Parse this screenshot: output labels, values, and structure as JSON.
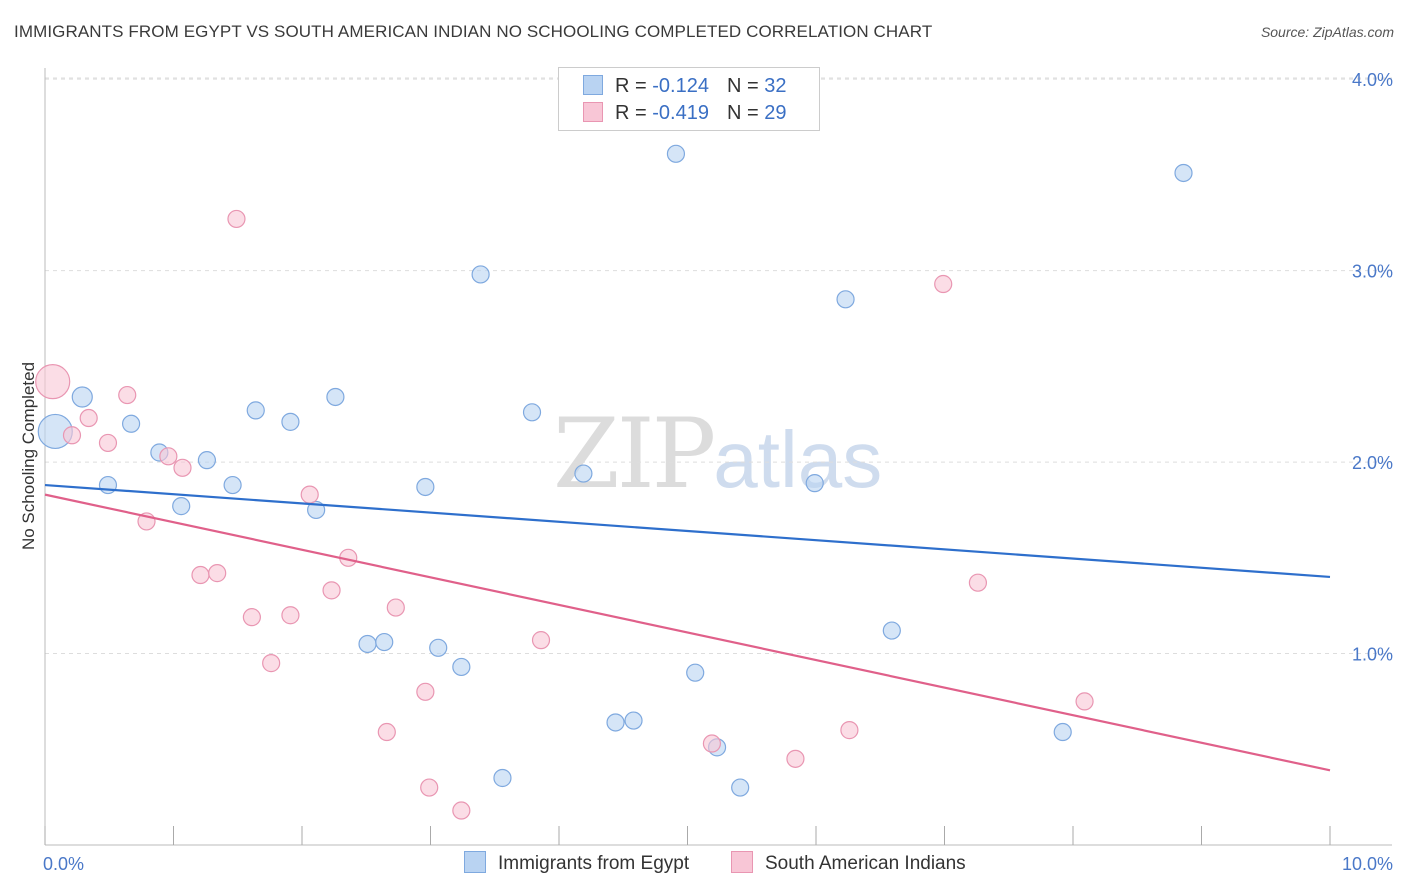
{
  "header": {
    "title": "IMMIGRANTS FROM EGYPT VS SOUTH AMERICAN INDIAN NO SCHOOLING COMPLETED CORRELATION CHART",
    "source": "Source: ZipAtlas.com"
  },
  "watermark": {
    "zip": "ZIP",
    "atlas": "atlas"
  },
  "legend": {
    "rows": [
      {
        "r_label": "R =",
        "r_value": "-0.124",
        "n_label": "N =",
        "n_value": "32"
      },
      {
        "r_label": "R =",
        "r_value": "-0.419",
        "n_label": "N =",
        "n_value": "29"
      }
    ]
  },
  "bottom_legend": {
    "egypt": "Immigrants from Egypt",
    "sai": "South American Indians"
  },
  "chart_data": {
    "type": "scatter",
    "title": "IMMIGRANTS FROM EGYPT VS SOUTH AMERICAN INDIAN NO SCHOOLING COMPLETED CORRELATION CHART",
    "xlabel": "",
    "ylabel": "No Schooling Completed",
    "xlim": [
      0,
      10
    ],
    "ylim": [
      0,
      4.1
    ],
    "x_tick_labels": [
      "0.0%",
      "10.0%"
    ],
    "y_ticks": [
      1,
      2,
      3,
      4
    ],
    "y_tick_labels": [
      "1.0%",
      "2.0%",
      "3.0%",
      "4.0%"
    ],
    "grid": true,
    "legend_position": "top-center",
    "colors": {
      "egypt_fill": "#b9d3f2",
      "egypt_stroke": "#7fa9df",
      "egypt_line": "#2e6fcc",
      "sai_fill": "#f8c6d6",
      "sai_stroke": "#e996b2",
      "sai_line": "#e0608a",
      "grid": "#dddddd",
      "tick_label": "#4a78c8"
    },
    "series": [
      {
        "name": "Immigrants from Egypt",
        "color": "#b9d3f2",
        "points": [
          {
            "x": 0.08,
            "y": 2.16,
            "size": 34
          },
          {
            "x": 0.29,
            "y": 2.34,
            "size": 20
          },
          {
            "x": 0.49,
            "y": 1.88,
            "size": 17
          },
          {
            "x": 0.67,
            "y": 2.2,
            "size": 17
          },
          {
            "x": 0.89,
            "y": 2.05,
            "size": 17
          },
          {
            "x": 1.06,
            "y": 1.77,
            "size": 17
          },
          {
            "x": 1.26,
            "y": 2.01,
            "size": 17
          },
          {
            "x": 1.46,
            "y": 1.88,
            "size": 17
          },
          {
            "x": 1.64,
            "y": 2.27,
            "size": 17
          },
          {
            "x": 1.91,
            "y": 2.21,
            "size": 17
          },
          {
            "x": 2.11,
            "y": 1.75,
            "size": 17
          },
          {
            "x": 2.26,
            "y": 2.34,
            "size": 17
          },
          {
            "x": 2.51,
            "y": 1.05,
            "size": 17
          },
          {
            "x": 2.64,
            "y": 1.06,
            "size": 17
          },
          {
            "x": 2.96,
            "y": 1.87,
            "size": 17
          },
          {
            "x": 3.06,
            "y": 1.03,
            "size": 17
          },
          {
            "x": 3.24,
            "y": 0.93,
            "size": 17
          },
          {
            "x": 3.39,
            "y": 2.98,
            "size": 17
          },
          {
            "x": 3.56,
            "y": 0.35,
            "size": 17
          },
          {
            "x": 3.79,
            "y": 2.26,
            "size": 17
          },
          {
            "x": 4.19,
            "y": 1.94,
            "size": 17
          },
          {
            "x": 4.44,
            "y": 0.64,
            "size": 17
          },
          {
            "x": 4.58,
            "y": 0.65,
            "size": 17
          },
          {
            "x": 4.91,
            "y": 3.61,
            "size": 17
          },
          {
            "x": 5.06,
            "y": 0.9,
            "size": 17
          },
          {
            "x": 5.23,
            "y": 0.51,
            "size": 17
          },
          {
            "x": 5.41,
            "y": 0.3,
            "size": 17
          },
          {
            "x": 5.99,
            "y": 1.89,
            "size": 17
          },
          {
            "x": 6.23,
            "y": 2.85,
            "size": 17
          },
          {
            "x": 6.59,
            "y": 1.12,
            "size": 17
          },
          {
            "x": 7.92,
            "y": 0.59,
            "size": 17
          },
          {
            "x": 8.86,
            "y": 3.51,
            "size": 17
          }
        ],
        "trend": {
          "x": [
            0,
            10
          ],
          "y": [
            1.88,
            1.4
          ]
        }
      },
      {
        "name": "South American Indians",
        "color": "#f8c6d6",
        "points": [
          {
            "x": 0.06,
            "y": 2.42,
            "size": 34
          },
          {
            "x": 0.21,
            "y": 2.14,
            "size": 17
          },
          {
            "x": 0.34,
            "y": 2.23,
            "size": 17
          },
          {
            "x": 0.49,
            "y": 2.1,
            "size": 17
          },
          {
            "x": 0.64,
            "y": 2.35,
            "size": 17
          },
          {
            "x": 0.79,
            "y": 1.69,
            "size": 17
          },
          {
            "x": 0.96,
            "y": 2.03,
            "size": 17
          },
          {
            "x": 1.07,
            "y": 1.97,
            "size": 17
          },
          {
            "x": 1.21,
            "y": 1.41,
            "size": 17
          },
          {
            "x": 1.34,
            "y": 1.42,
            "size": 17
          },
          {
            "x": 1.49,
            "y": 3.27,
            "size": 17
          },
          {
            "x": 1.61,
            "y": 1.19,
            "size": 17
          },
          {
            "x": 1.76,
            "y": 0.95,
            "size": 17
          },
          {
            "x": 1.91,
            "y": 1.2,
            "size": 17
          },
          {
            "x": 2.06,
            "y": 1.83,
            "size": 17
          },
          {
            "x": 2.23,
            "y": 1.33,
            "size": 17
          },
          {
            "x": 2.36,
            "y": 1.5,
            "size": 17
          },
          {
            "x": 2.66,
            "y": 0.59,
            "size": 17
          },
          {
            "x": 2.73,
            "y": 1.24,
            "size": 17
          },
          {
            "x": 2.96,
            "y": 0.8,
            "size": 17
          },
          {
            "x": 2.99,
            "y": 0.3,
            "size": 17
          },
          {
            "x": 3.24,
            "y": 0.18,
            "size": 17
          },
          {
            "x": 3.86,
            "y": 1.07,
            "size": 17
          },
          {
            "x": 5.19,
            "y": 0.53,
            "size": 17
          },
          {
            "x": 5.84,
            "y": 0.45,
            "size": 17
          },
          {
            "x": 6.26,
            "y": 0.6,
            "size": 17
          },
          {
            "x": 6.99,
            "y": 2.93,
            "size": 17
          },
          {
            "x": 7.26,
            "y": 1.37,
            "size": 17
          },
          {
            "x": 8.09,
            "y": 0.75,
            "size": 17
          }
        ],
        "trend": {
          "x": [
            0,
            10
          ],
          "y": [
            1.83,
            0.39
          ]
        }
      }
    ]
  }
}
